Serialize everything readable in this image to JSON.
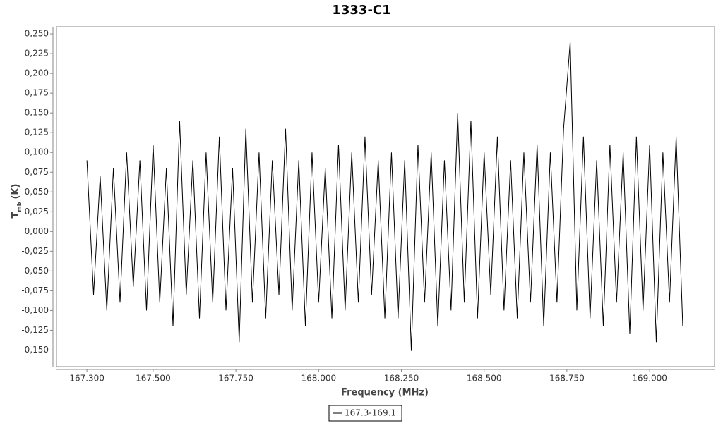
{
  "chart_data": {
    "type": "line",
    "title": "1333-C1",
    "xlabel": "Frequency (MHz)",
    "ylabel": "T",
    "ylabel_sub": "mb",
    "ylabel_unit": "(K)",
    "xlim": [
      167.208,
      169.196
    ],
    "ylim": [
      -0.171,
      0.259
    ],
    "xticks": [
      {
        "value": 167.3,
        "label": "167.300"
      },
      {
        "value": 167.5,
        "label": "167.500"
      },
      {
        "value": 167.75,
        "label": "167.750"
      },
      {
        "value": 168.0,
        "label": "168.000"
      },
      {
        "value": 168.25,
        "label": "168.250"
      },
      {
        "value": 168.5,
        "label": "168.500"
      },
      {
        "value": 168.75,
        "label": "168.750"
      },
      {
        "value": 169.0,
        "label": "169.000"
      }
    ],
    "yticks": [
      {
        "value": 0.25,
        "label": "0,250"
      },
      {
        "value": 0.225,
        "label": "0,225"
      },
      {
        "value": 0.2,
        "label": "0,200"
      },
      {
        "value": 0.175,
        "label": "0,175"
      },
      {
        "value": 0.15,
        "label": "0,150"
      },
      {
        "value": 0.125,
        "label": "0,125"
      },
      {
        "value": 0.1,
        "label": "0,100"
      },
      {
        "value": 0.075,
        "label": "0,075"
      },
      {
        "value": 0.05,
        "label": "0,050"
      },
      {
        "value": 0.025,
        "label": "0,025"
      },
      {
        "value": 0,
        "label": "0,000"
      },
      {
        "value": -0.025,
        "label": "-0,025"
      },
      {
        "value": -0.05,
        "label": "-0,050"
      },
      {
        "value": -0.075,
        "label": "-0,075"
      },
      {
        "value": -0.1,
        "label": "-0,100"
      },
      {
        "value": -0.125,
        "label": "-0,125"
      },
      {
        "value": -0.15,
        "label": "-0,150"
      }
    ],
    "x": [
      167.3,
      167.32,
      167.34,
      167.36,
      167.38,
      167.4,
      167.42,
      167.44,
      167.46,
      167.48,
      167.5,
      167.52,
      167.54,
      167.56,
      167.58,
      167.6,
      167.62,
      167.64,
      167.66,
      167.68,
      167.7,
      167.72,
      167.74,
      167.76,
      167.78,
      167.8,
      167.82,
      167.84,
      167.86,
      167.88,
      167.9,
      167.92,
      167.94,
      167.96,
      167.98,
      168.0,
      168.02,
      168.04,
      168.06,
      168.08,
      168.1,
      168.12,
      168.14,
      168.16,
      168.18,
      168.2,
      168.22,
      168.24,
      168.26,
      168.28,
      168.3,
      168.32,
      168.34,
      168.36,
      168.38,
      168.4,
      168.42,
      168.44,
      168.46,
      168.48,
      168.5,
      168.52,
      168.54,
      168.56,
      168.58,
      168.6,
      168.62,
      168.64,
      168.66,
      168.68,
      168.7,
      168.72,
      168.74,
      168.76,
      168.78,
      168.8,
      168.82,
      168.84,
      168.86,
      168.88,
      168.9,
      168.92,
      168.94,
      168.96,
      168.98,
      169.0,
      169.02,
      169.04,
      169.06,
      169.08,
      169.1
    ],
    "series": [
      {
        "name": "167.3-169.1",
        "color": "#000000",
        "values": [
          0.09,
          -0.08,
          0.07,
          -0.1,
          0.08,
          -0.09,
          0.1,
          -0.07,
          0.09,
          -0.1,
          0.11,
          -0.09,
          0.08,
          -0.12,
          0.14,
          -0.08,
          0.09,
          -0.11,
          0.1,
          -0.09,
          0.12,
          -0.1,
          0.08,
          -0.14,
          0.13,
          -0.09,
          0.1,
          -0.11,
          0.09,
          -0.08,
          0.13,
          -0.1,
          0.09,
          -0.12,
          0.1,
          -0.09,
          0.08,
          -0.11,
          0.11,
          -0.1,
          0.1,
          -0.09,
          0.12,
          -0.08,
          0.09,
          -0.11,
          0.1,
          -0.11,
          0.09,
          -0.151,
          0.11,
          -0.09,
          0.1,
          -0.12,
          0.09,
          -0.1,
          0.15,
          -0.09,
          0.14,
          -0.11,
          0.1,
          -0.08,
          0.12,
          -0.1,
          0.09,
          -0.11,
          0.1,
          -0.09,
          0.11,
          -0.12,
          0.1,
          -0.09,
          0.13,
          0.24,
          -0.1,
          0.12,
          -0.11,
          0.09,
          -0.12,
          0.11,
          -0.09,
          0.1,
          -0.13,
          0.12,
          -0.1,
          0.11,
          -0.14,
          0.1,
          -0.09,
          0.12,
          -0.12
        ]
      }
    ]
  }
}
